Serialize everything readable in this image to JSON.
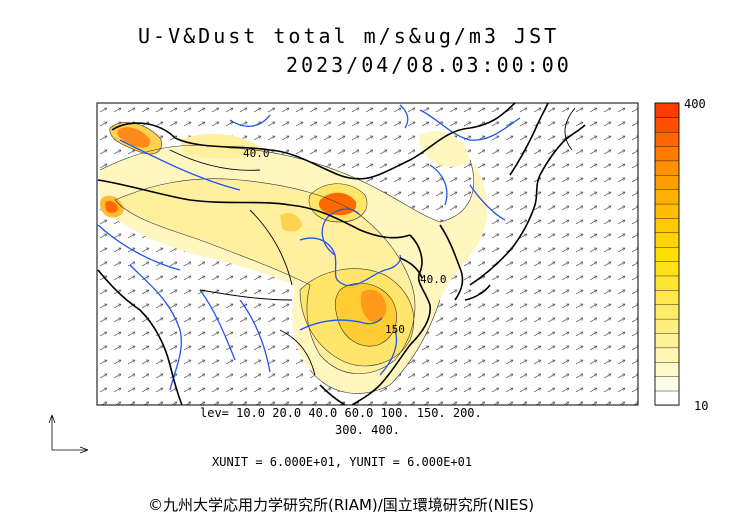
{
  "title": {
    "line1": "U-V&Dust total m/s&ug/m3 JST",
    "line2": "2023/04/08.03:00:00"
  },
  "levels": {
    "line1": "lev= 10.0 20.0 40.0 60.0 100. 150. 200.",
    "line2": "300. 400."
  },
  "units_text": "XUNIT = 6.000E+01, YUNIT = 6.000E+01",
  "copyright": "©九州大学応用力学研究所(RIAM)/国立環境研究所(NIES)",
  "colorbar": {
    "max_label": "400",
    "min_label": "10",
    "colors": [
      "#ffffff",
      "#fffde6",
      "#fffacc",
      "#fff6b3",
      "#fff399",
      "#ffef80",
      "#ffec66",
      "#ffe84d",
      "#ffe533",
      "#ffe11a",
      "#ffde00",
      "#ffd400",
      "#ffc800",
      "#ffbc00",
      "#ffb000",
      "#ffa000",
      "#ff9000",
      "#ff7c00",
      "#ff6600",
      "#ff5000",
      "#ff3c00"
    ]
  },
  "map": {
    "contour_labels": [
      "40.0",
      "40.0",
      "150"
    ],
    "colors": {
      "background": "#ffffff",
      "dust_light": "#fff6c0",
      "dust_mid": "#ffe56a",
      "dust_high": "#ffcc33",
      "dust_peak": "#ff6a00",
      "rivers": "#2255ee",
      "borders": "#000000"
    }
  },
  "legend_icon": "wind-vector-axes-icon"
}
